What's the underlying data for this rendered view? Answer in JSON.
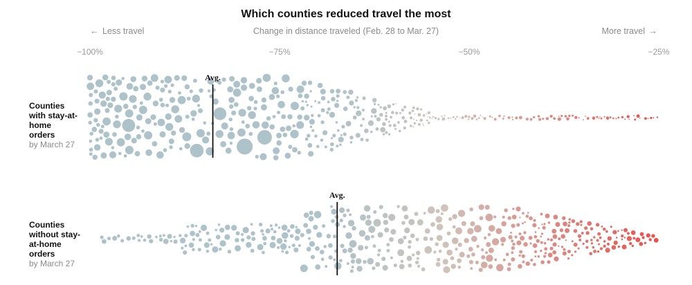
{
  "chart_data": {
    "type": "scatter",
    "title": "Which counties reduced travel the most",
    "subtitle": "Change in distance traveled (Feb. 28 to Mar. 27)",
    "direction_left": "Less travel",
    "direction_right": "More travel",
    "x_ticks": [
      {
        "value": -100,
        "label": "−100%"
      },
      {
        "value": -75,
        "label": "−75%"
      },
      {
        "value": -50,
        "label": "−50%"
      },
      {
        "value": -25,
        "label": "−25%"
      }
    ],
    "xlim": [
      -100,
      -25
    ],
    "color_scale": {
      "low": "#adc2c9",
      "mid": "#cfc4bb",
      "high": "#e8504b"
    },
    "avg_label": "Avg.",
    "groups": [
      {
        "key": "with",
        "label_bold": "Counties with stay-at-home orders",
        "label_sub": "by March 27",
        "average": -83.8,
        "min": -100,
        "max": -25
      },
      {
        "key": "without",
        "label_bold": "Counties without stay-at-home orders",
        "label_sub": "by March 27",
        "average": -67.4,
        "min": -99,
        "max": -25
      }
    ]
  }
}
